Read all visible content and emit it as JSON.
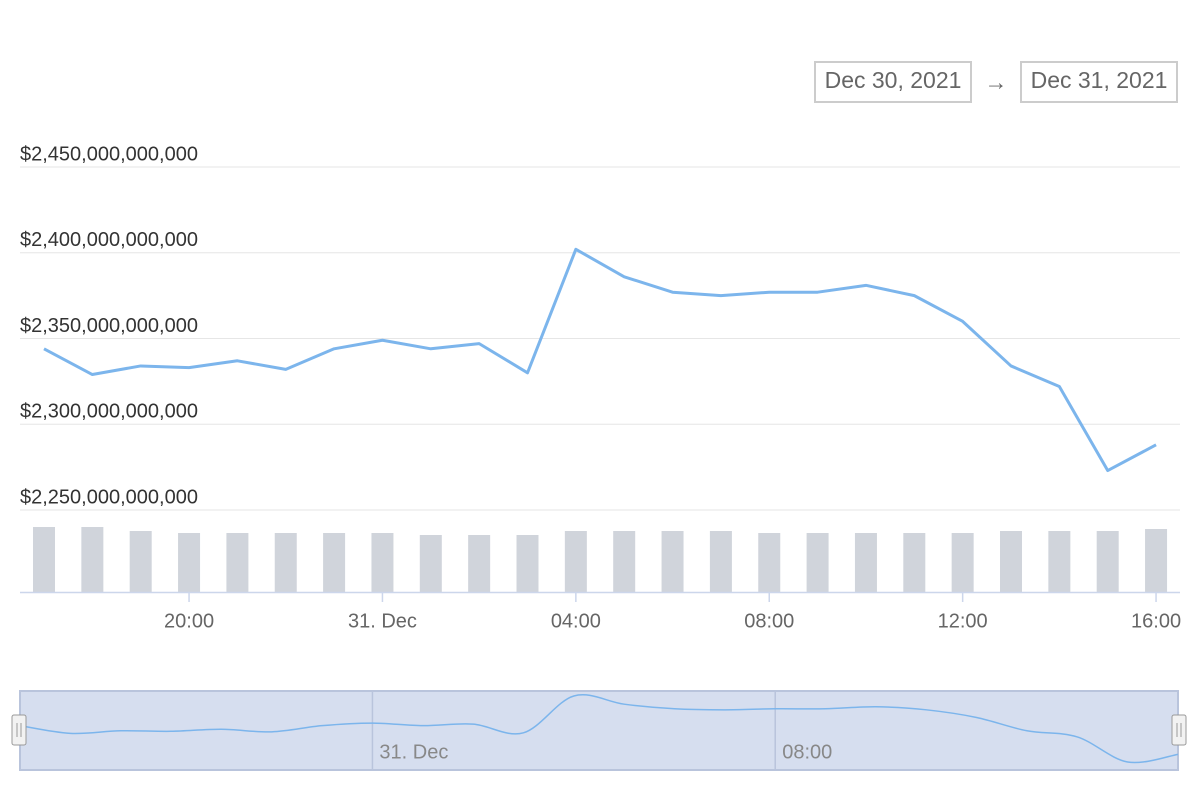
{
  "chart_data": {
    "type": "line",
    "range_start": "Dec 30, 2021",
    "range_separator": "→",
    "range_end": "Dec 31, 2021",
    "categories": [
      null,
      null,
      null,
      "20:00",
      null,
      null,
      null,
      "31. Dec",
      null,
      null,
      null,
      "04:00",
      null,
      null,
      null,
      "08:00",
      null,
      null,
      null,
      "12:00",
      null,
      null,
      null,
      "16:00"
    ],
    "series": [
      {
        "color": "#7cb5ec",
        "values": [
          2344000000000,
          2329000000000,
          2334000000000,
          2333000000000,
          2337000000000,
          2332000000000,
          2344000000000,
          2349000000000,
          2344000000000,
          2347000000000,
          2330000000000,
          2402000000000,
          2386000000000,
          2377000000000,
          2375000000000,
          2377000000000,
          2377000000000,
          2381000000000,
          2375000000000,
          2360000000000,
          2334000000000,
          2322000000000,
          2273000000000,
          2288000000000
        ]
      }
    ],
    "ylim": [
      2250000000000,
      2450000000000
    ],
    "yticks": [
      {
        "value": 2250000000000,
        "label": "$2,250,000,000,000"
      },
      {
        "value": 2300000000000,
        "label": "$2,300,000,000,000"
      },
      {
        "value": 2350000000000,
        "label": "$2,350,000,000,000"
      },
      {
        "value": 2400000000000,
        "label": "$2,400,000,000,000"
      },
      {
        "value": 2450000000000,
        "label": "$2,450,000,000,000"
      }
    ],
    "grid": true,
    "volume": {
      "color": "#d0d4db",
      "values": [
        65,
        65,
        61,
        59,
        59,
        59,
        59,
        59,
        57,
        57,
        57,
        61,
        61,
        61,
        61,
        59,
        59,
        59,
        59,
        59,
        61,
        61,
        61,
        63
      ],
      "ylim": [
        0,
        75
      ]
    }
  }
}
